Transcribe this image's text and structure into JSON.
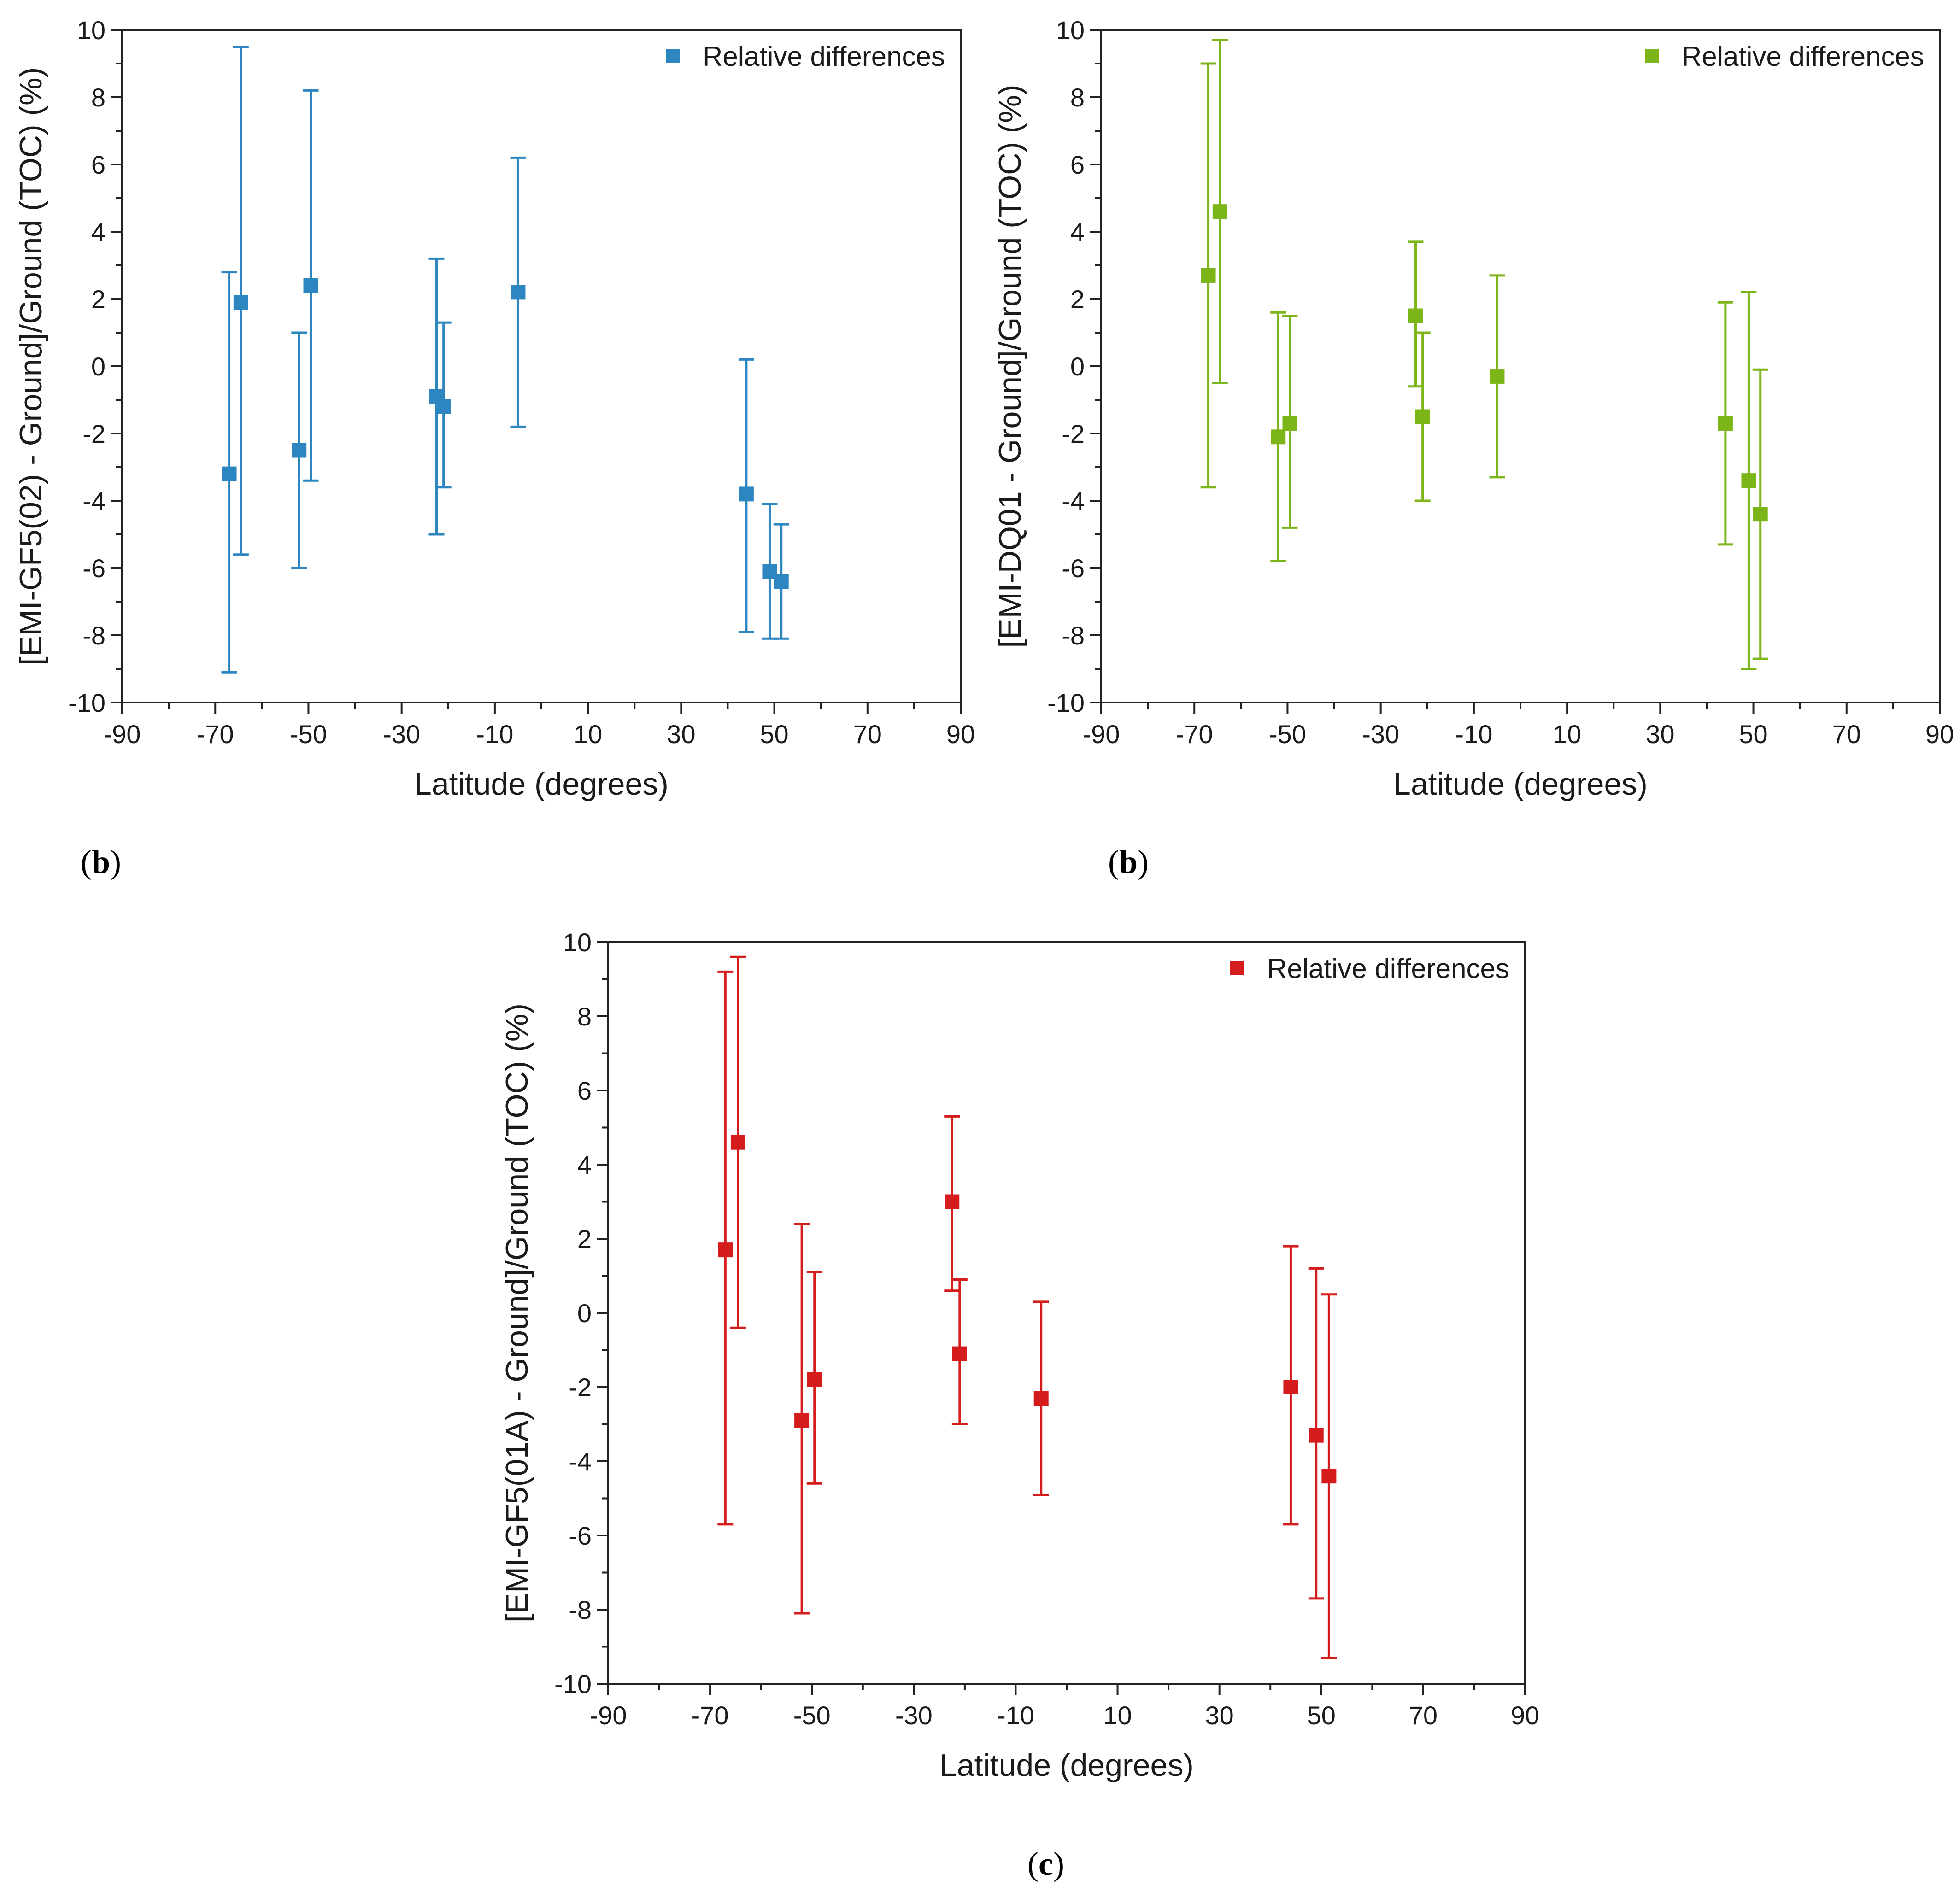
{
  "chart_data": [
    {
      "panel_label": "b",
      "type": "scatter",
      "xlabel": "Latitude (degrees)",
      "ylabel": "[EMI-GF5(02) - Ground]/Ground (TOC) (%)",
      "xlim": [
        -90,
        90
      ],
      "ylim": [
        -10,
        10
      ],
      "xticks": [
        -90,
        -70,
        -50,
        -30,
        -10,
        10,
        30,
        50,
        70,
        90
      ],
      "yticks": [
        -10,
        -8,
        -6,
        -4,
        -2,
        0,
        2,
        4,
        6,
        8,
        10
      ],
      "legend_position": "top-right",
      "series": [
        {
          "name": "Relative differences",
          "color": "#2e86c1",
          "points": [
            {
              "x": -67,
              "y": -3.2,
              "low": -9.1,
              "high": 2.8
            },
            {
              "x": -64.5,
              "y": 1.9,
              "low": -5.6,
              "high": 9.5
            },
            {
              "x": -52,
              "y": -2.5,
              "low": -6.0,
              "high": 1.0
            },
            {
              "x": -49.5,
              "y": 2.4,
              "low": -3.4,
              "high": 8.2
            },
            {
              "x": -22.5,
              "y": -0.9,
              "low": -5.0,
              "high": 3.2
            },
            {
              "x": -21,
              "y": -1.2,
              "low": -3.6,
              "high": 1.3
            },
            {
              "x": -5,
              "y": 2.2,
              "low": -1.8,
              "high": 6.2
            },
            {
              "x": 44,
              "y": -3.8,
              "low": -7.9,
              "high": 0.2
            },
            {
              "x": 49,
              "y": -6.1,
              "low": -8.1,
              "high": -4.1
            },
            {
              "x": 51.5,
              "y": -6.4,
              "low": -8.1,
              "high": -4.7
            }
          ]
        }
      ]
    },
    {
      "panel_label": "b",
      "type": "scatter",
      "xlabel": "Latitude (degrees)",
      "ylabel": "[EMI-DQ01 - Ground]/Ground (TOC) (%)",
      "xlim": [
        -90,
        90
      ],
      "ylim": [
        -10,
        10
      ],
      "xticks": [
        -90,
        -70,
        -50,
        -30,
        -10,
        10,
        30,
        50,
        70,
        90
      ],
      "yticks": [
        -10,
        -8,
        -6,
        -4,
        -2,
        0,
        2,
        4,
        6,
        8,
        10
      ],
      "legend_position": "top-right",
      "series": [
        {
          "name": "Relative differences",
          "color": "#7cb518",
          "points": [
            {
              "x": -67,
              "y": 2.7,
              "low": -3.6,
              "high": 9.0
            },
            {
              "x": -64.5,
              "y": 4.6,
              "low": -0.5,
              "high": 9.7
            },
            {
              "x": -52,
              "y": -2.1,
              "low": -5.8,
              "high": 1.6
            },
            {
              "x": -49.5,
              "y": -1.7,
              "low": -4.8,
              "high": 1.5
            },
            {
              "x": -22.5,
              "y": 1.5,
              "low": -0.6,
              "high": 3.7
            },
            {
              "x": -21,
              "y": -1.5,
              "low": -4.0,
              "high": 1.0
            },
            {
              "x": -5,
              "y": -0.3,
              "low": -3.3,
              "high": 2.7
            },
            {
              "x": 44,
              "y": -1.7,
              "low": -5.3,
              "high": 1.9
            },
            {
              "x": 49,
              "y": -3.4,
              "low": -9.0,
              "high": 2.2
            },
            {
              "x": 51.5,
              "y": -4.4,
              "low": -8.7,
              "high": -0.1
            }
          ]
        }
      ]
    },
    {
      "panel_label": "c",
      "type": "scatter",
      "xlabel": "Latitude (degrees)",
      "ylabel": "[EMI-GF5(01A) - Ground]/Ground (TOC) (%)",
      "xlim": [
        -90,
        90
      ],
      "ylim": [
        -10,
        10
      ],
      "xticks": [
        -90,
        -70,
        -50,
        -30,
        -10,
        10,
        30,
        50,
        70,
        90
      ],
      "yticks": [
        -10,
        -8,
        -6,
        -4,
        -2,
        0,
        2,
        4,
        6,
        8,
        10
      ],
      "legend_position": "top-right",
      "series": [
        {
          "name": "Relative differences",
          "color": "#d41c1c",
          "points": [
            {
              "x": -67,
              "y": 1.7,
              "low": -5.7,
              "high": 9.2
            },
            {
              "x": -64.5,
              "y": 4.6,
              "low": -0.4,
              "high": 9.6
            },
            {
              "x": -52,
              "y": -2.9,
              "low": -8.1,
              "high": 2.4
            },
            {
              "x": -49.5,
              "y": -1.8,
              "low": -4.6,
              "high": 1.1
            },
            {
              "x": -22.5,
              "y": 3.0,
              "low": 0.6,
              "high": 5.3
            },
            {
              "x": -21,
              "y": -1.1,
              "low": -3.0,
              "high": 0.9
            },
            {
              "x": -5,
              "y": -2.3,
              "low": -4.9,
              "high": 0.3
            },
            {
              "x": 44,
              "y": -2.0,
              "low": -5.7,
              "high": 1.8
            },
            {
              "x": 49,
              "y": -3.3,
              "low": -7.7,
              "high": 1.2
            },
            {
              "x": 51.5,
              "y": -4.4,
              "low": -9.3,
              "high": 0.5
            }
          ]
        }
      ]
    }
  ]
}
